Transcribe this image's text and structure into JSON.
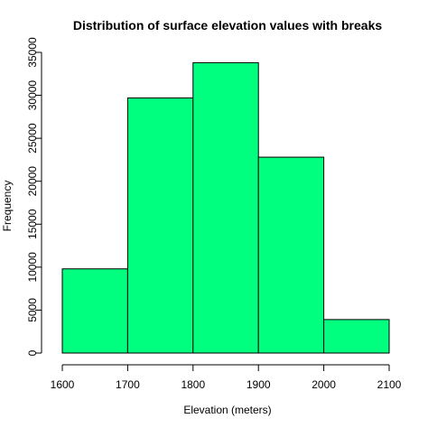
{
  "chart_data": {
    "type": "bar",
    "title": "Distribution of surface elevation values with breaks",
    "xlabel": "Elevation (meters)",
    "ylabel": "Frequency",
    "bins": [
      {
        "start": 1600,
        "end": 1700,
        "value": 9800
      },
      {
        "start": 1700,
        "end": 1800,
        "value": 29700
      },
      {
        "start": 1800,
        "end": 1900,
        "value": 33800
      },
      {
        "start": 1900,
        "end": 2000,
        "value": 22800
      },
      {
        "start": 2000,
        "end": 2100,
        "value": 3900
      }
    ],
    "x_ticks": [
      1600,
      1700,
      1800,
      1900,
      2000,
      2100
    ],
    "y_ticks": [
      0,
      5000,
      10000,
      15000,
      20000,
      25000,
      30000,
      35000
    ],
    "xlim": [
      1600,
      2100
    ],
    "ylim": [
      0,
      35000
    ],
    "grid": false,
    "bar_color": "#00FF7F",
    "edge_color": "#000000"
  }
}
